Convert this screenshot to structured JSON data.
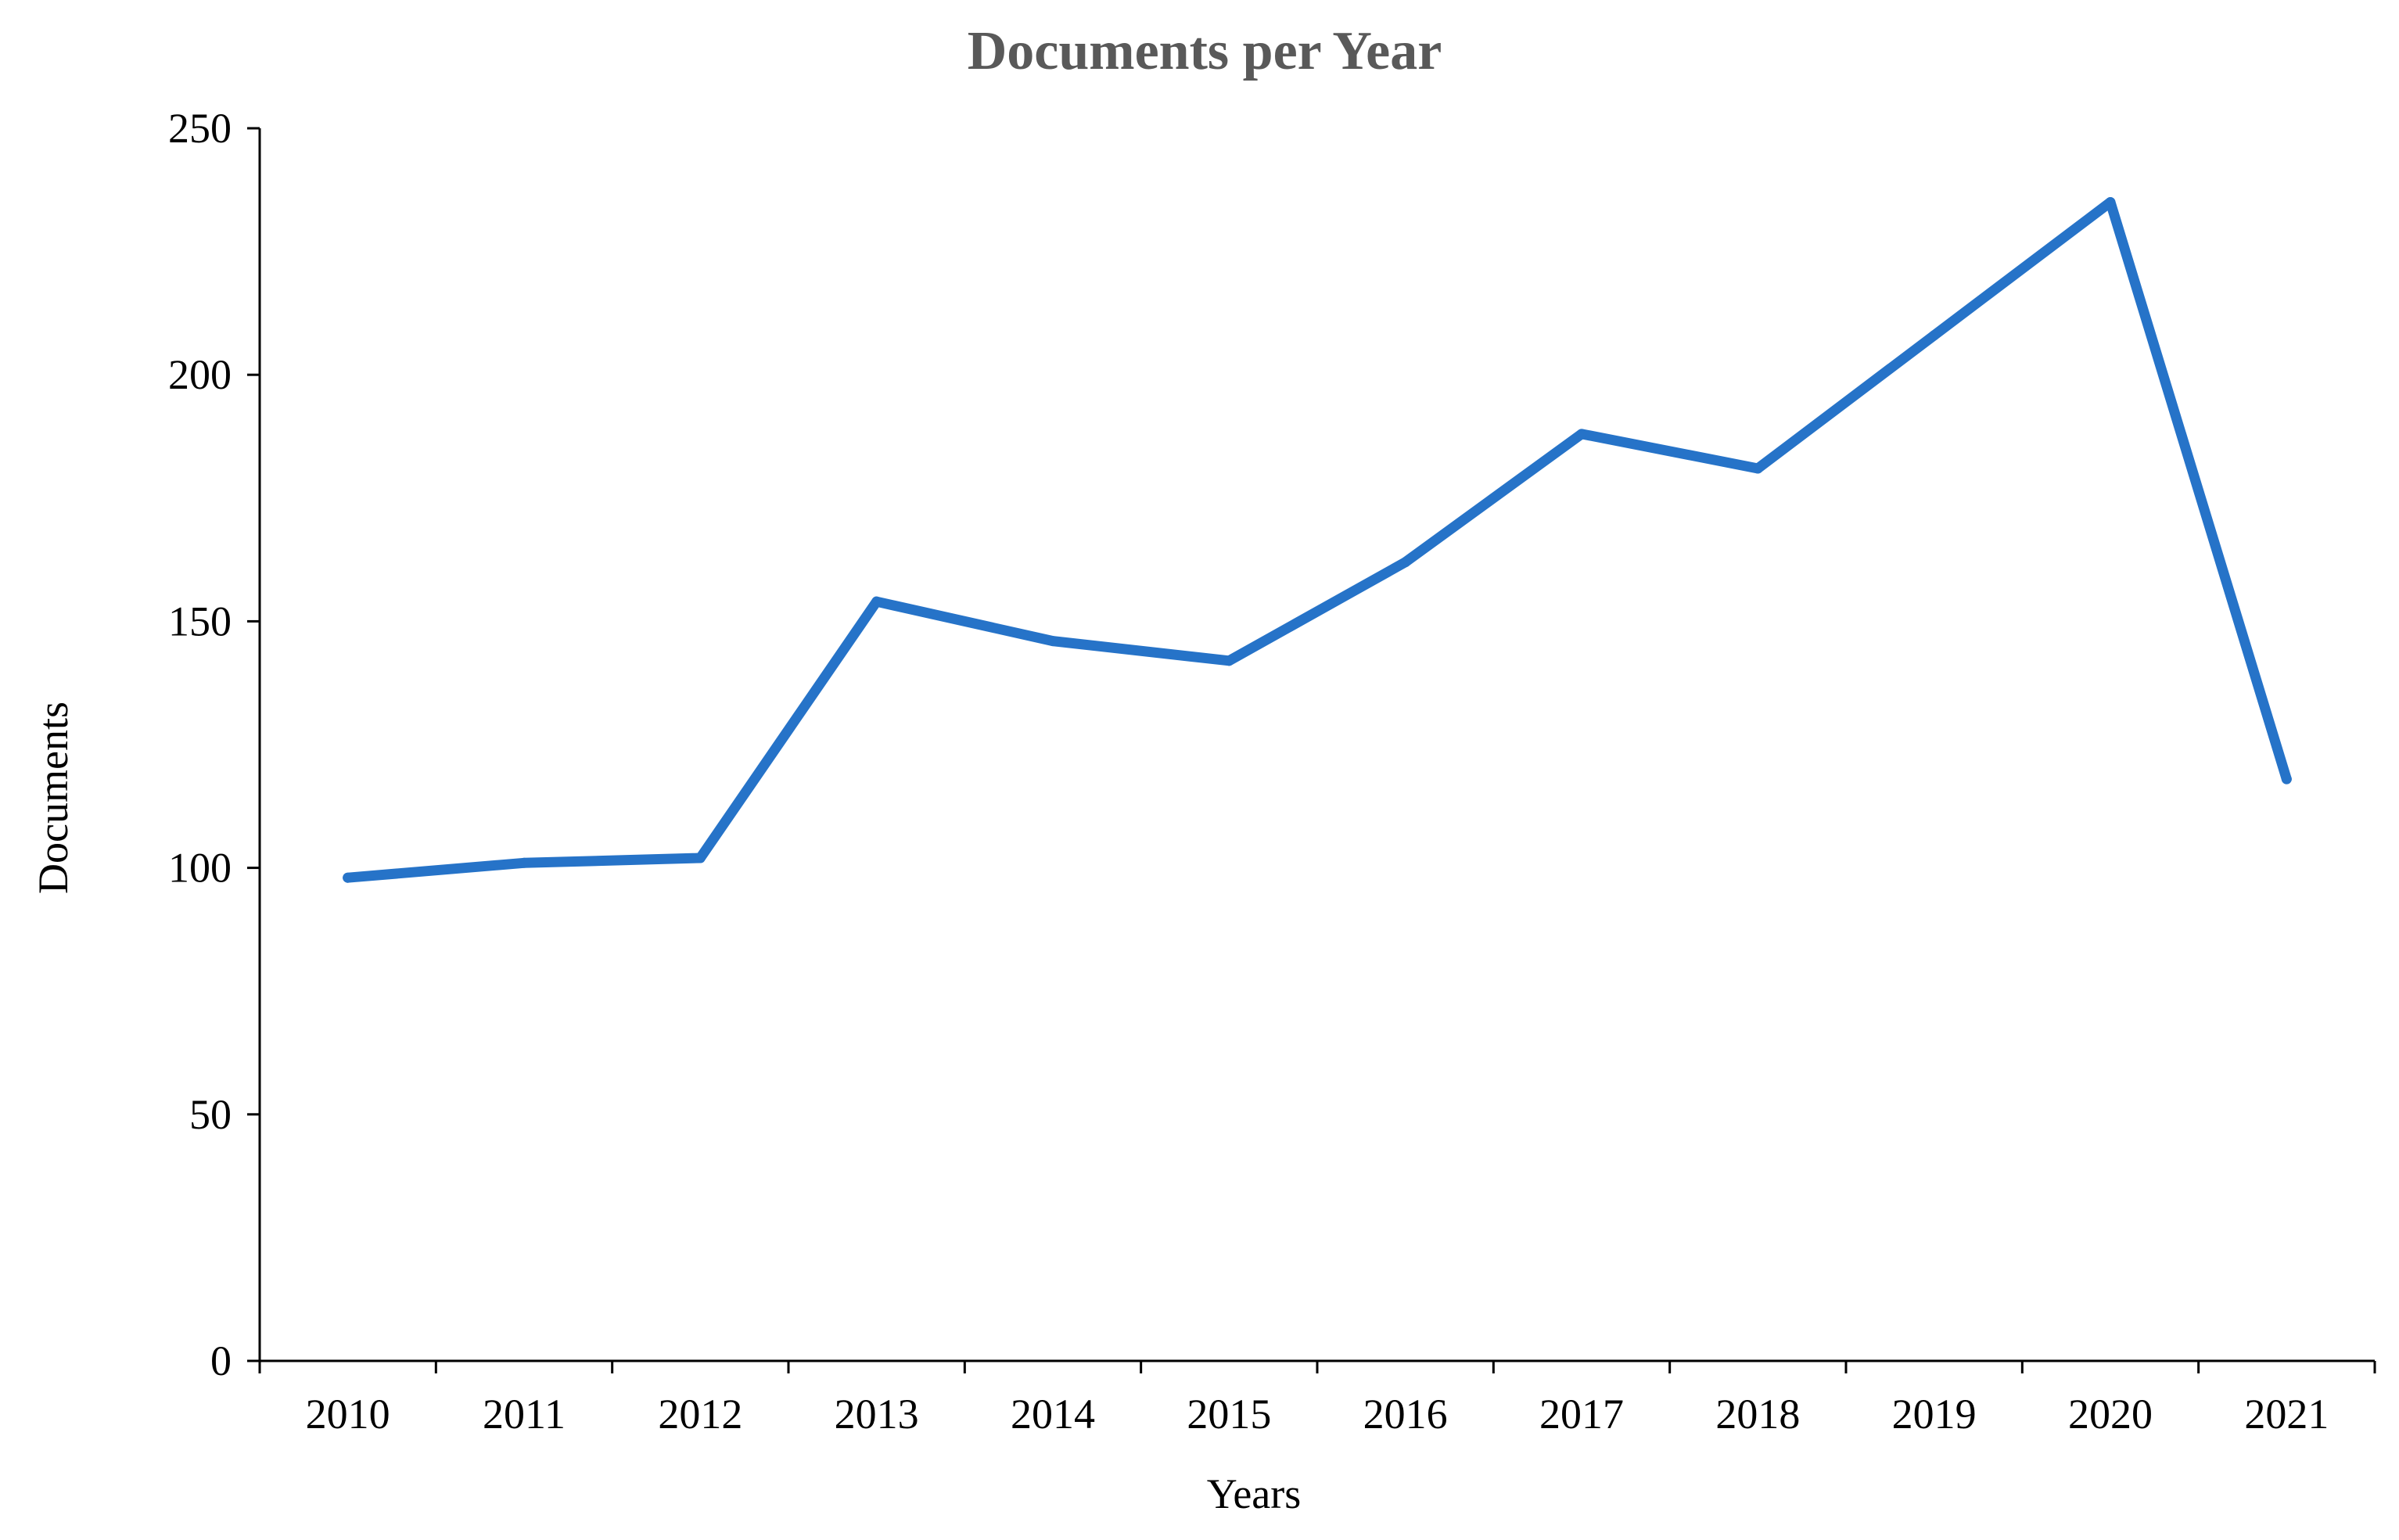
{
  "chart_data": {
    "type": "line",
    "title": "Documents per Year",
    "xlabel": "Years",
    "ylabel": "Documents",
    "categories": [
      "2010",
      "2011",
      "2012",
      "2013",
      "2014",
      "2015",
      "2016",
      "2017",
      "2018",
      "2019",
      "2020",
      "2021"
    ],
    "series": [
      {
        "values": [
          98,
          101,
          102,
          154,
          146,
          142,
          162,
          188,
          181,
          208,
          235,
          118
        ],
        "color": "#2673C8"
      }
    ],
    "ylim": [
      0,
      250
    ],
    "yticks": [
      0,
      50,
      100,
      150,
      200,
      250
    ],
    "grid": false,
    "legend": "none"
  }
}
